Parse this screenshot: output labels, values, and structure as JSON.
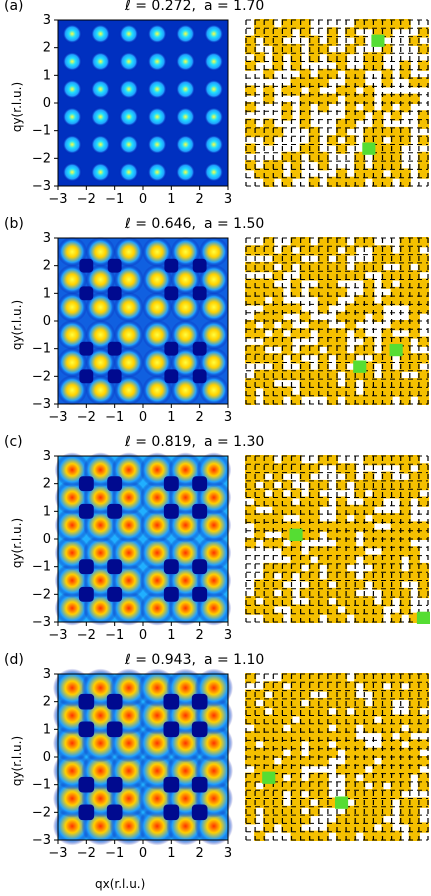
{
  "panels": [
    {
      "label": "(a)",
      "title_l": "ℓ = 0.272,",
      "title_a": "a = 1.70",
      "ell": 0.272,
      "a": 1.7
    },
    {
      "label": "(b)",
      "title_l": "ℓ = 0.646,",
      "title_a": "a = 1.50",
      "ell": 0.646,
      "a": 1.5
    },
    {
      "label": "(c)",
      "title_l": "ℓ = 0.819,",
      "title_a": "a = 1.30",
      "ell": 0.819,
      "a": 1.3
    },
    {
      "label": "(d)",
      "title_l": "ℓ = 0.943,",
      "title_a": "a = 1.10",
      "ell": 0.943,
      "a": 1.1
    }
  ],
  "axes": {
    "ylabel": "qy(r.l.u.)",
    "xlabel": "qx(r.l.u.)",
    "ticks": [
      "−3",
      "−2",
      "−1",
      "0",
      "1",
      "2",
      "3"
    ]
  },
  "chart_data": {
    "type": "heatmap",
    "x_range": [
      -3,
      3
    ],
    "y_range": [
      -3,
      3
    ],
    "colors": {
      "heat_low": "#00008f",
      "heat_mid": "#00c0ff",
      "heat_high": "#ff3000",
      "cluster": "#f5c000",
      "defect": "#55dd33",
      "grid": "#000000"
    }
  }
}
